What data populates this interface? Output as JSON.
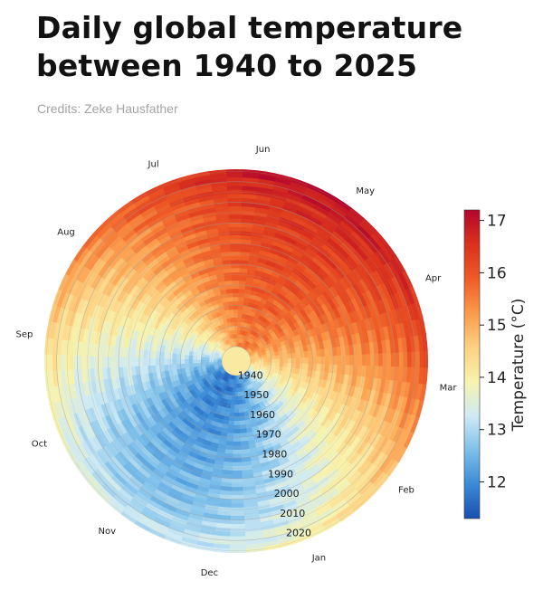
{
  "header": {
    "title_line1": "Daily global temperature",
    "title_line2": "between 1940 to 2025",
    "credits": "Credits: Zeke Hausfather"
  },
  "chart_data": {
    "type": "heatmap",
    "subtype": "polar-spiral",
    "months": [
      "Jan",
      "Feb",
      "Mar",
      "Apr",
      "May",
      "Jun",
      "Jul",
      "Aug",
      "Sep",
      "Oct",
      "Nov",
      "Dec"
    ],
    "year_labels": [
      "1940",
      "1950",
      "1960",
      "1970",
      "1980",
      "1990",
      "2000",
      "2010",
      "2020"
    ],
    "year_range": [
      1940,
      2025
    ],
    "colorbar": {
      "label": "Temperature (°C)",
      "ticks": [
        12,
        13,
        14,
        15,
        16,
        17
      ],
      "range": [
        11.3,
        17.2
      ],
      "colormap": "RdYlBu_r",
      "colors": [
        "#1a4fb0",
        "#3a8ad6",
        "#7ec0ea",
        "#cfeaf4",
        "#f7f3ae",
        "#fdd081",
        "#fb9a4a",
        "#ee5b26",
        "#d9311d",
        "#b2062d"
      ]
    },
    "grid": true
  }
}
